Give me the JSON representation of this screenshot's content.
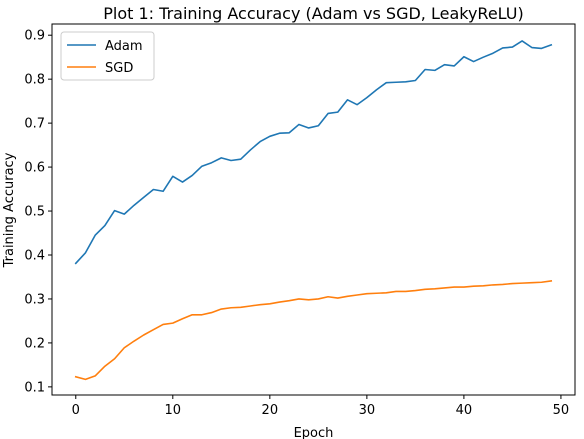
{
  "chart_data": {
    "type": "line",
    "title": "Plot 1: Training Accuracy (Adam vs SGD, LeakyReLU)",
    "xlabel": "Epoch",
    "ylabel": "Training Accuracy",
    "xlim": [
      -2.45,
      51.45
    ],
    "ylim": [
      0.0815,
      0.9255
    ],
    "xticks": [
      0,
      10,
      20,
      30,
      40,
      50
    ],
    "yticks": [
      0.1,
      0.2,
      0.3,
      0.4,
      0.5,
      0.6,
      0.7,
      0.8,
      0.9
    ],
    "ytick_labels": [
      "0.1",
      "0.2",
      "0.3",
      "0.4",
      "0.5",
      "0.6",
      "0.7",
      "0.8",
      "0.9"
    ],
    "grid": false,
    "legend_position": "top-left",
    "x": [
      0,
      1,
      2,
      3,
      4,
      5,
      6,
      7,
      8,
      9,
      10,
      11,
      12,
      13,
      14,
      15,
      16,
      17,
      18,
      19,
      20,
      21,
      22,
      23,
      24,
      25,
      26,
      27,
      28,
      29,
      30,
      31,
      32,
      33,
      34,
      35,
      36,
      37,
      38,
      39,
      40,
      41,
      42,
      43,
      44,
      45,
      46,
      47,
      48,
      49
    ],
    "series": [
      {
        "name": "Adam",
        "color": "#1f77b4",
        "values": [
          0.381,
          0.405,
          0.445,
          0.467,
          0.501,
          0.493,
          0.513,
          0.531,
          0.549,
          0.545,
          0.579,
          0.566,
          0.581,
          0.602,
          0.61,
          0.621,
          0.615,
          0.618,
          0.639,
          0.658,
          0.67,
          0.677,
          0.678,
          0.697,
          0.689,
          0.694,
          0.722,
          0.725,
          0.753,
          0.742,
          0.758,
          0.776,
          0.792,
          0.793,
          0.794,
          0.797,
          0.822,
          0.82,
          0.833,
          0.83,
          0.851,
          0.84,
          0.85,
          0.859,
          0.871,
          0.873,
          0.887,
          0.872,
          0.87,
          0.878
        ]
      },
      {
        "name": "SGD",
        "color": "#ff7f0e",
        "values": [
          0.123,
          0.117,
          0.125,
          0.147,
          0.164,
          0.189,
          0.204,
          0.218,
          0.23,
          0.242,
          0.245,
          0.255,
          0.264,
          0.264,
          0.269,
          0.277,
          0.28,
          0.281,
          0.284,
          0.287,
          0.289,
          0.293,
          0.296,
          0.3,
          0.298,
          0.3,
          0.305,
          0.302,
          0.306,
          0.309,
          0.312,
          0.313,
          0.314,
          0.317,
          0.317,
          0.319,
          0.322,
          0.323,
          0.325,
          0.327,
          0.327,
          0.329,
          0.33,
          0.332,
          0.333,
          0.335,
          0.336,
          0.337,
          0.338,
          0.341
        ]
      }
    ]
  }
}
